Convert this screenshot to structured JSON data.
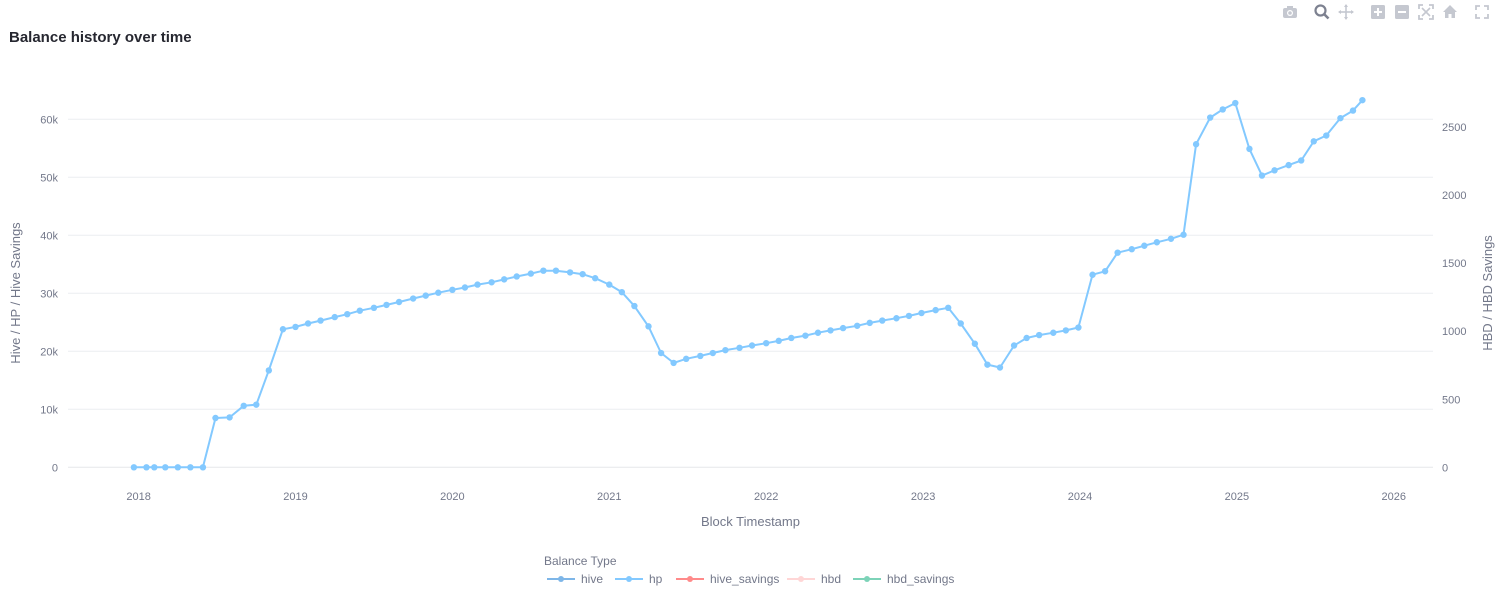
{
  "title": "Balance history over time",
  "modebar": [
    {
      "name": "camera-icon",
      "label": "Download plot as a png"
    },
    {
      "name": "zoom-icon",
      "label": "Zoom"
    },
    {
      "name": "pan-icon",
      "label": "Pan"
    },
    {
      "name": "zoom-in-icon",
      "label": "Zoom in"
    },
    {
      "name": "zoom-out-icon",
      "label": "Zoom out"
    },
    {
      "name": "autoscale-icon",
      "label": "Autoscale"
    },
    {
      "name": "home-icon",
      "label": "Reset axes"
    },
    {
      "name": "fullscreen-icon",
      "label": "Fullscreen"
    }
  ],
  "chart_data": {
    "type": "line",
    "title": "Balance history over time",
    "xlabel": "Block Timestamp",
    "ylabel": "Hive / HP / Hive Savings",
    "y2label": "HBD / HBD Savings",
    "xlim": [
      2017.55,
      2026.25
    ],
    "ylim": [
      -1500,
      68500
    ],
    "y2lim": [
      -64,
      2920
    ],
    "x_ticks": [
      2018,
      2019,
      2020,
      2021,
      2022,
      2023,
      2024,
      2025,
      2026
    ],
    "x_tick_labels": [
      "2018",
      "2019",
      "2020",
      "2021",
      "2022",
      "2023",
      "2024",
      "2025",
      "2026"
    ],
    "y_ticks": [
      0,
      10000,
      20000,
      30000,
      40000,
      50000,
      60000
    ],
    "y_tick_labels": [
      "0",
      "10k",
      "20k",
      "30k",
      "40k",
      "50k",
      "60k"
    ],
    "y2_ticks": [
      0,
      500,
      1000,
      1500,
      2000,
      2500
    ],
    "y2_tick_labels": [
      "0",
      "500",
      "1000",
      "1500",
      "2000",
      "2500"
    ],
    "grid": true,
    "legend": {
      "title": "Balance Type",
      "position": "bottom-center",
      "entries": [
        "hive",
        "hp",
        "hive_savings",
        "hbd",
        "hbd_savings"
      ]
    },
    "series": [
      {
        "name": "hp",
        "color": "#83c9ff",
        "axis": "y",
        "points": [
          [
            2017.97,
            0
          ],
          [
            2018.05,
            0
          ],
          [
            2018.1,
            0
          ],
          [
            2018.17,
            0
          ],
          [
            2018.25,
            0
          ],
          [
            2018.33,
            0
          ],
          [
            2018.41,
            0
          ],
          [
            2018.49,
            8500
          ],
          [
            2018.58,
            8600
          ],
          [
            2018.67,
            10600
          ],
          [
            2018.75,
            10800
          ],
          [
            2018.83,
            16700
          ],
          [
            2018.92,
            23800
          ],
          [
            2019.0,
            24200
          ],
          [
            2019.08,
            24800
          ],
          [
            2019.16,
            25300
          ],
          [
            2019.25,
            25900
          ],
          [
            2019.33,
            26400
          ],
          [
            2019.41,
            27000
          ],
          [
            2019.5,
            27500
          ],
          [
            2019.58,
            28000
          ],
          [
            2019.66,
            28500
          ],
          [
            2019.75,
            29100
          ],
          [
            2019.83,
            29600
          ],
          [
            2019.91,
            30100
          ],
          [
            2020.0,
            30600
          ],
          [
            2020.08,
            31000
          ],
          [
            2020.16,
            31500
          ],
          [
            2020.25,
            31900
          ],
          [
            2020.33,
            32400
          ],
          [
            2020.41,
            32900
          ],
          [
            2020.5,
            33400
          ],
          [
            2020.58,
            33900
          ],
          [
            2020.66,
            33900
          ],
          [
            2020.75,
            33600
          ],
          [
            2020.83,
            33300
          ],
          [
            2020.91,
            32600
          ],
          [
            2021.0,
            31500
          ],
          [
            2021.08,
            30200
          ],
          [
            2021.16,
            27800
          ],
          [
            2021.25,
            24300
          ],
          [
            2021.33,
            19700
          ],
          [
            2021.41,
            18000
          ],
          [
            2021.49,
            18700
          ],
          [
            2021.58,
            19200
          ],
          [
            2021.66,
            19700
          ],
          [
            2021.74,
            20200
          ],
          [
            2021.83,
            20600
          ],
          [
            2021.91,
            21000
          ],
          [
            2022.0,
            21400
          ],
          [
            2022.08,
            21800
          ],
          [
            2022.16,
            22300
          ],
          [
            2022.25,
            22700
          ],
          [
            2022.33,
            23200
          ],
          [
            2022.41,
            23600
          ],
          [
            2022.49,
            24000
          ],
          [
            2022.58,
            24400
          ],
          [
            2022.66,
            24900
          ],
          [
            2022.74,
            25300
          ],
          [
            2022.83,
            25700
          ],
          [
            2022.91,
            26100
          ],
          [
            2022.99,
            26600
          ],
          [
            2023.08,
            27100
          ],
          [
            2023.16,
            27500
          ],
          [
            2023.24,
            24800
          ],
          [
            2023.33,
            21300
          ],
          [
            2023.41,
            17700
          ],
          [
            2023.49,
            17200
          ],
          [
            2023.58,
            21000
          ],
          [
            2023.66,
            22300
          ],
          [
            2023.74,
            22800
          ],
          [
            2023.83,
            23200
          ],
          [
            2023.91,
            23600
          ],
          [
            2023.99,
            24100
          ],
          [
            2024.08,
            33200
          ],
          [
            2024.16,
            33800
          ],
          [
            2024.24,
            37000
          ],
          [
            2024.33,
            37600
          ],
          [
            2024.41,
            38200
          ],
          [
            2024.49,
            38800
          ],
          [
            2024.58,
            39400
          ],
          [
            2024.66,
            40100
          ],
          [
            2024.74,
            55700
          ],
          [
            2024.83,
            60300
          ],
          [
            2024.91,
            61700
          ],
          [
            2024.99,
            62800
          ],
          [
            2025.08,
            54900
          ],
          [
            2025.16,
            50300
          ],
          [
            2025.24,
            51200
          ],
          [
            2025.33,
            52100
          ],
          [
            2025.41,
            52900
          ],
          [
            2025.49,
            56200
          ],
          [
            2025.57,
            57200
          ],
          [
            2025.66,
            60200
          ],
          [
            2025.74,
            61500
          ],
          [
            2025.8,
            63300
          ]
        ]
      }
    ]
  }
}
